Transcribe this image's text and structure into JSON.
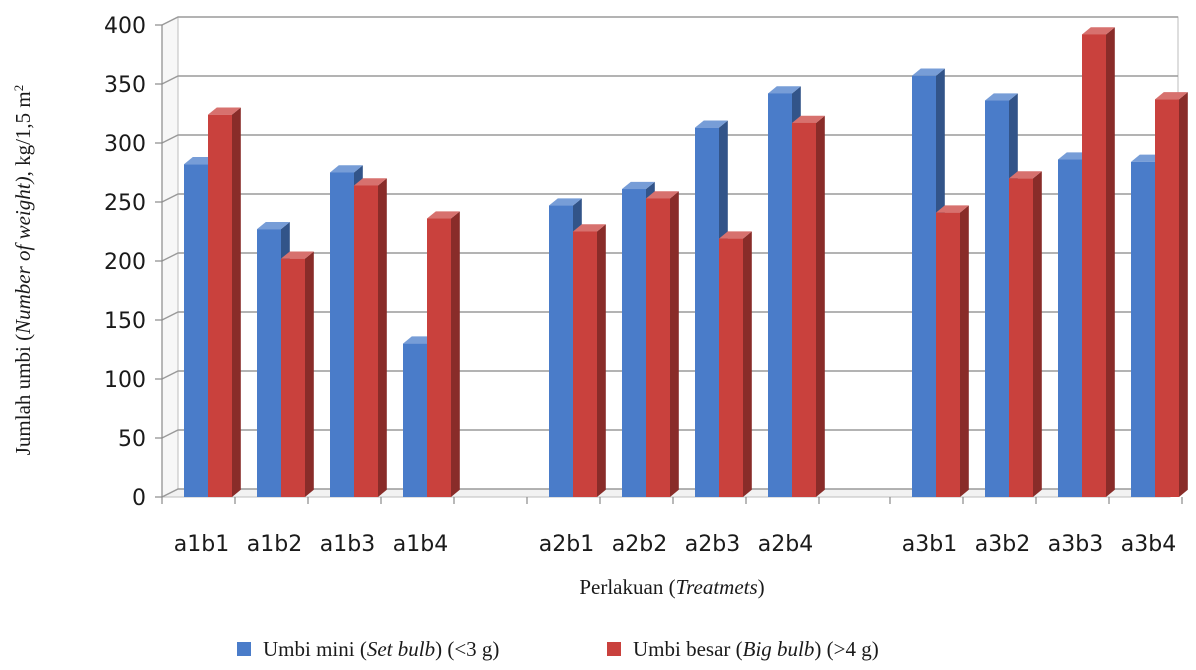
{
  "chart_data": {
    "type": "bar",
    "three_d": true,
    "categories": [
      "a1b1",
      "a1b2",
      "a1b3",
      "a1b4",
      "a2b1",
      "a2b2",
      "a2b3",
      "a2b4",
      "a3b1",
      "a3b2",
      "a3b3",
      "a3b4"
    ],
    "groups": [
      [
        0,
        1,
        2,
        3
      ],
      [
        4,
        5,
        6,
        7
      ],
      [
        8,
        9,
        10,
        11
      ]
    ],
    "series": [
      {
        "name": "Umbi mini (Set bulb) (<3 g)",
        "name_parts": {
          "pre": "Umbi mini (",
          "italic": "Set bulb",
          "post": ") (<3 g)"
        },
        "color": "#4a7cc9",
        "values": [
          282,
          227,
          275,
          130,
          247,
          261,
          313,
          342,
          357,
          336,
          286,
          284
        ]
      },
      {
        "name": "Umbi besar (Big bulb) (>4 g)",
        "name_parts": {
          "pre": "Umbi besar (",
          "italic": "Big bulb",
          "post": ") (>4 g)"
        },
        "color": "#c9413d",
        "values": [
          324,
          202,
          264,
          236,
          225,
          253,
          219,
          317,
          241,
          270,
          392,
          337
        ]
      }
    ],
    "ylim": [
      0,
      400
    ],
    "yticks": [
      0,
      50,
      100,
      150,
      200,
      250,
      300,
      350,
      400
    ],
    "grid": true,
    "legend_position": "bottom",
    "ylabel": "Jumlah umbi (Number of weight), kg/1,5 m2",
    "ylabel_parts": {
      "pre": "Jumlah umbi (",
      "italic": "Number of weight)",
      "post": ", kg/1,5 m",
      "sup": "2"
    },
    "xlabel": "Perlakuan (Treatmets)",
    "xlabel_parts": {
      "pre": "Perlakuan (",
      "italic": "Treatmets",
      "post": ")"
    }
  }
}
